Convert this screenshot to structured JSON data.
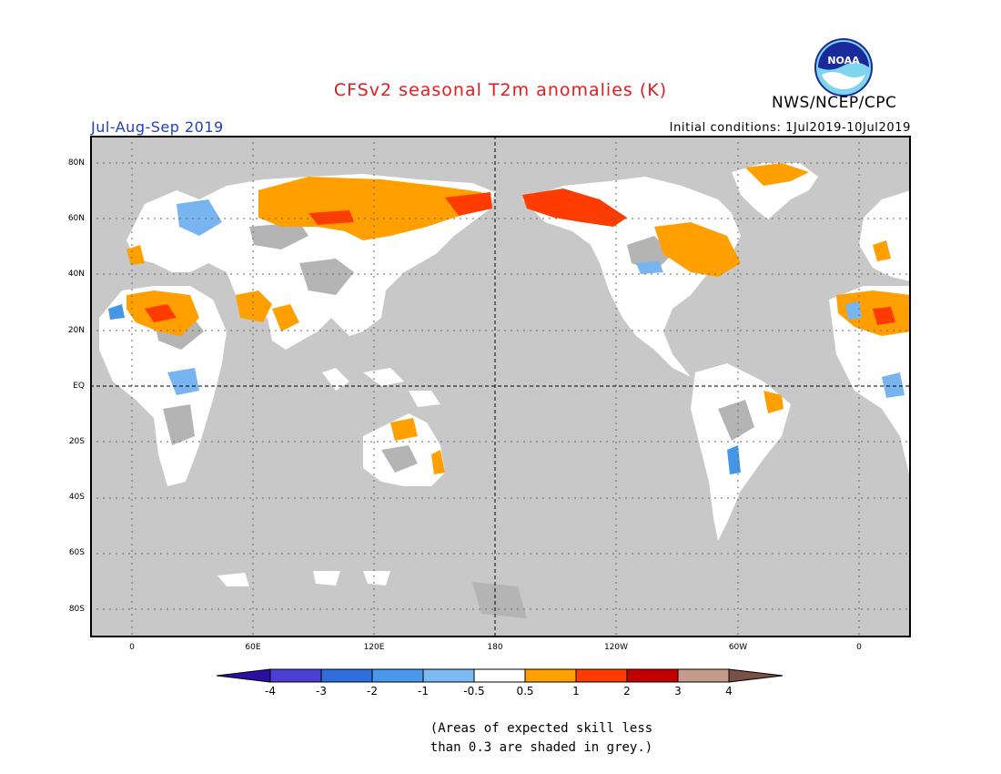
{
  "header": {
    "title": "CFSv2 seasonal T2m anomalies (K)",
    "agency": "NWS/NCEP/CPC",
    "season": "Jul-Aug-Sep 2019",
    "initial_conditions": "Initial conditions: 1Jul2019-10Jul2019",
    "logo_text": "NOAA"
  },
  "map": {
    "lat_labels": [
      "80N",
      "60N",
      "40N",
      "20N",
      "EQ",
      "20S",
      "40S",
      "60S",
      "80S"
    ],
    "lon_labels": [
      "0",
      "60E",
      "120E",
      "180",
      "120W",
      "60W",
      "0"
    ],
    "colors": {
      "ocean_grey": "#c8c8c8",
      "land_white": "#ffffff",
      "grey_skill": "#b4b4b4",
      "warm_05_1": "#ff9f00",
      "warm_1_2": "#ff3c00",
      "warm_2_3": "#c80000",
      "cool_05_1": "#78b4f0",
      "cool_1_2": "#4696e6"
    }
  },
  "colorbar": {
    "labels": [
      "-4",
      "-3",
      "-2",
      "-1",
      "-0.5",
      "0.5",
      "1",
      "2",
      "3",
      "4"
    ],
    "colors": [
      "#2a0fa0",
      "#4c40d4",
      "#2e6ddc",
      "#4a98ec",
      "#7dbaf3",
      "#ffffff",
      "#ff9f00",
      "#ff3c00",
      "#c30000",
      "#c49b8c",
      "#7a4f45"
    ]
  },
  "note": {
    "line1": "(Areas of expected skill less",
    "line2": "than 0.3 are shaded in grey.)"
  }
}
